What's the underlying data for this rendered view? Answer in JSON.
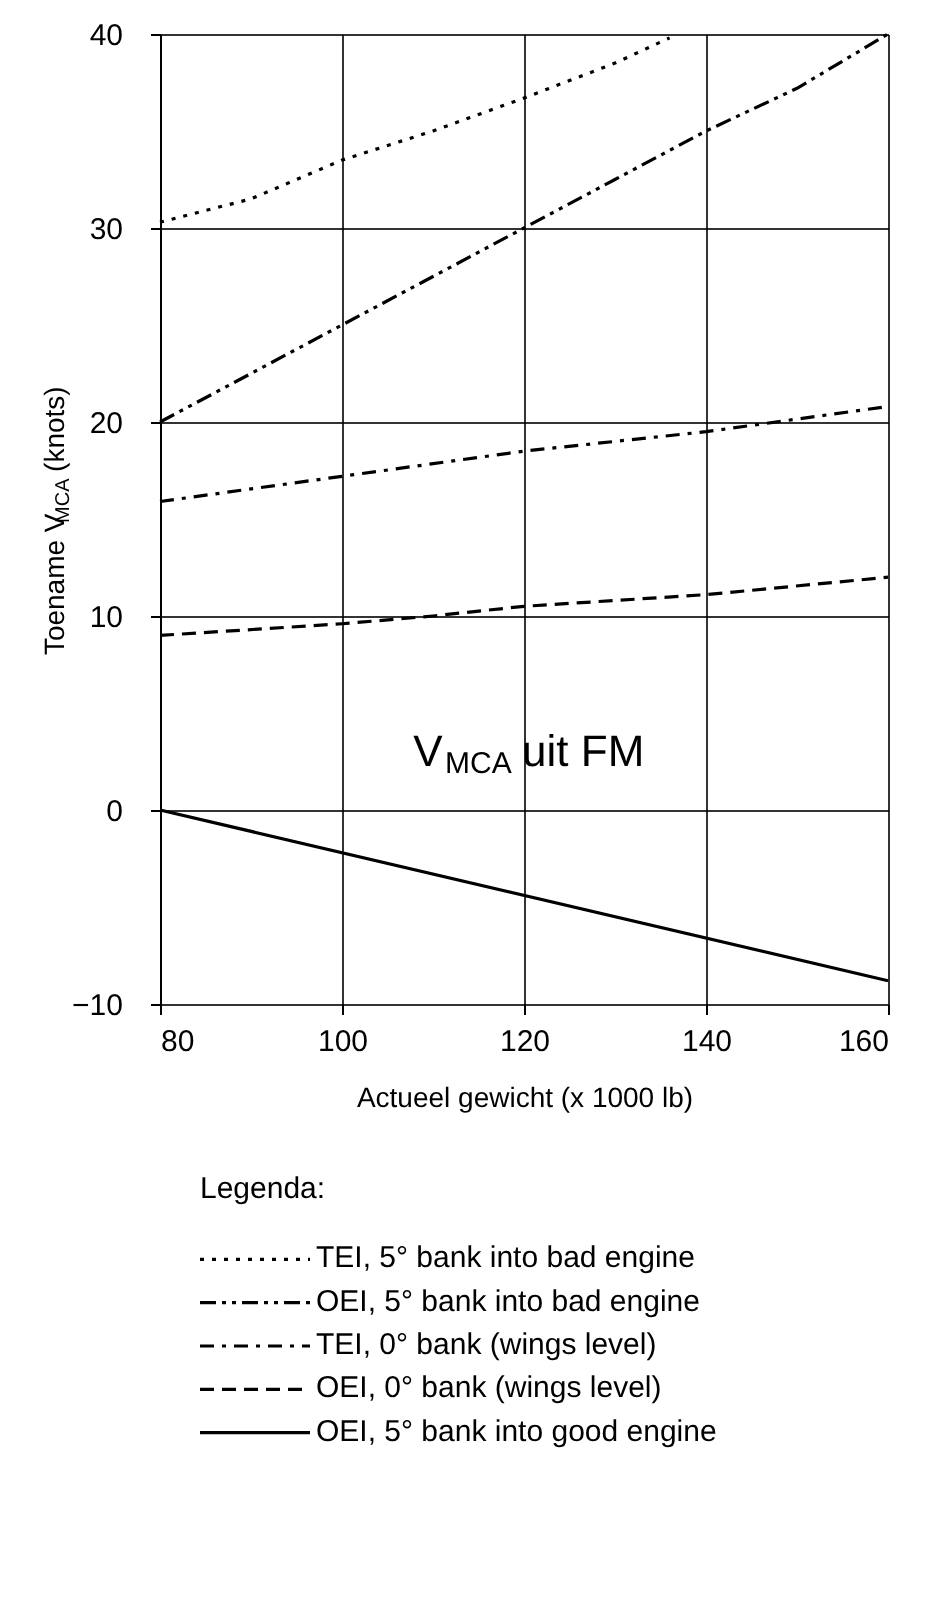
{
  "chart_data": {
    "type": "line",
    "xlabel": "Actueel gewicht (x 1000 lb)",
    "ylabel": "Toename V$_{MCA}$ (knots)",
    "x": [
      80,
      90,
      100,
      110,
      120,
      130,
      136
    ],
    "xlim": [
      80,
      160
    ],
    "xticks": [
      80,
      100,
      120,
      140,
      160
    ],
    "ylim": [
      -10,
      40
    ],
    "yticks": [
      -10,
      0,
      10,
      20,
      30,
      40
    ],
    "grid": true,
    "legend": "bottom",
    "legend_title": "Legenda:",
    "marker": "none",
    "annotations": [
      "V$_{MCA}$ uit FM"
    ],
    "series": [
      {
        "name": "TEI, 5°  bank into bad engine",
        "color": "#000000",
        "line_style": "dotted",
        "values": [
          30.3,
          31.5,
          33.5,
          35,
          36.7,
          38.5,
          39.8
        ]
      },
      {
        "name": "OEI, 5° bank into bad engine",
        "color": "#000000",
        "line_style": "dashed",
        "x": [
          80,
          90,
          100,
          110,
          120,
          130,
          140,
          150,
          160
        ],
        "values": [
          20,
          22.5,
          25,
          27.5,
          30,
          32.5,
          35,
          37.2,
          40
        ]
      },
      {
        "name": "TEI, 0°  bank (wings level)",
        "color": "#000000",
        "line_style": "dashed",
        "x": [
          80,
          100,
          120,
          140,
          160
        ],
        "values": [
          15.9,
          17.2,
          18.5,
          19.5,
          20.8
        ]
      },
      {
        "name": "OEI, 0° bank (wings level)",
        "color": "#000000",
        "line_style": "dashed",
        "x": [
          80,
          100,
          110,
          120,
          140,
          160
        ],
        "values": [
          9,
          9.6,
          10,
          10.5,
          11.1,
          12
        ]
      },
      {
        "name": "OEI, 5° bank into good engine",
        "color": "#000000",
        "line_style": "solid",
        "x": [
          80,
          160
        ],
        "values": [
          0,
          -8.8
        ]
      }
    ]
  }
}
